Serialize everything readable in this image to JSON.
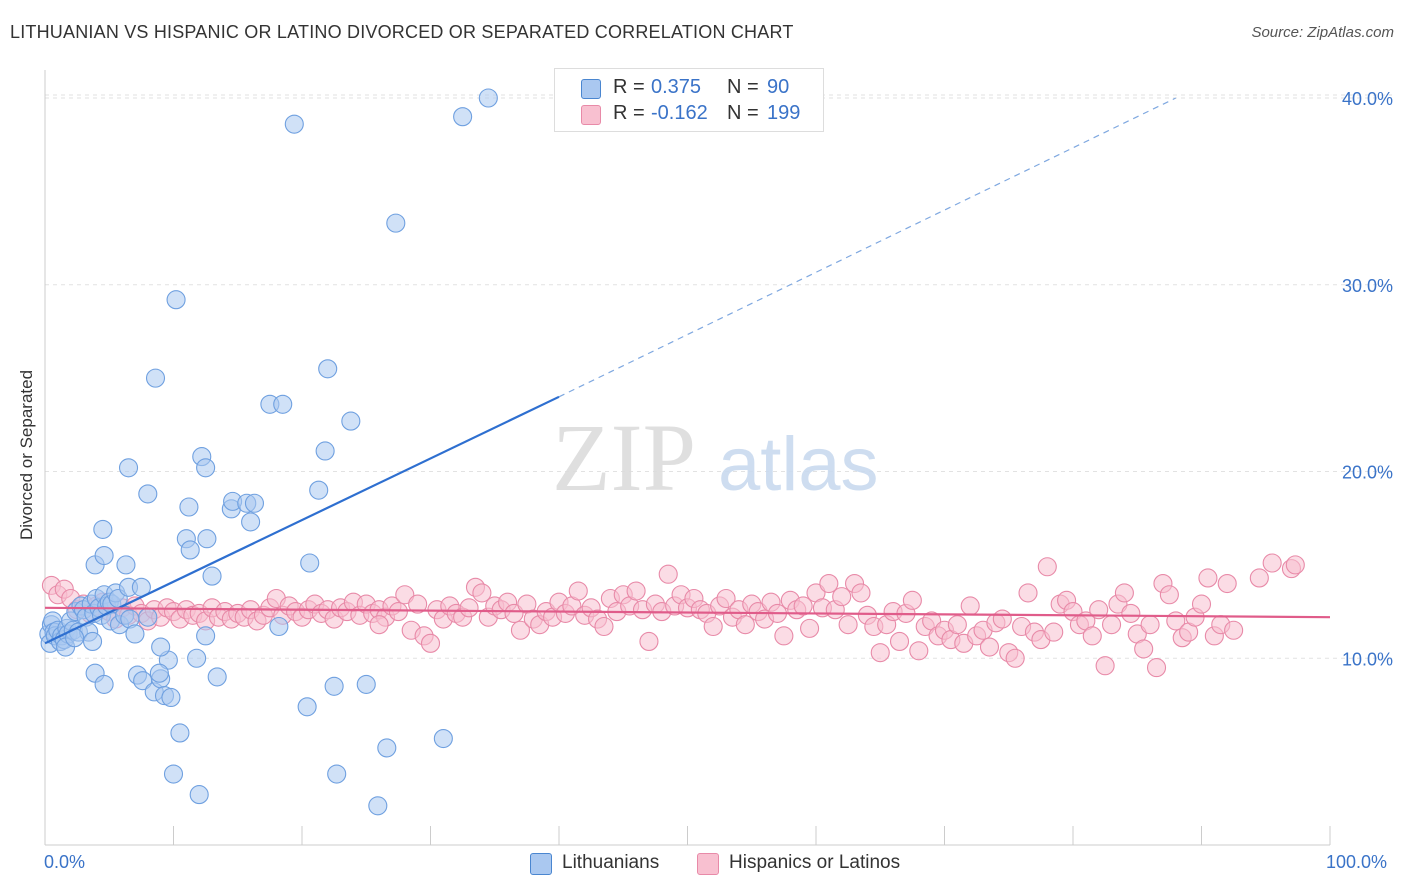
{
  "title": "LITHUANIAN VS HISPANIC OR LATINO DIVORCED OR SEPARATED CORRELATION CHART",
  "source": "Source: ZipAtlas.com",
  "watermark": {
    "zip": "ZIP",
    "atlas": "atlas"
  },
  "legend": {
    "r_label": "R =",
    "n_label": "N =",
    "rows": [
      {
        "r": "0.375",
        "n": "90",
        "color": "#aac8f0",
        "border": "#4a86d0"
      },
      {
        "r": "-0.162",
        "n": "199",
        "color": "#f8c0d0",
        "border": "#e88aa8"
      }
    ]
  },
  "bottom_legend": [
    {
      "label": "Lithuanians",
      "color": "#aac8f0",
      "border": "#4a86d0"
    },
    {
      "label": "Hispanics or Latinos",
      "color": "#f8c0d0",
      "border": "#e88aa8"
    }
  ],
  "x_tick_labels": {
    "left": "0.0%",
    "right": "100.0%"
  },
  "chart_data": {
    "type": "scatter",
    "xlabel": "",
    "ylabel": "Divorced or Separated",
    "xlim": [
      0,
      100
    ],
    "ylim": [
      0,
      41.5
    ],
    "y_ticks": [
      {
        "value": 10,
        "label": "10.0%"
      },
      {
        "value": 20,
        "label": "20.0%"
      },
      {
        "value": 30,
        "label": "30.0%"
      },
      {
        "value": 40,
        "label": "40.0%"
      }
    ],
    "grid": true,
    "legend_position": "top-center",
    "series": [
      {
        "name": "Lithuanians",
        "color": "#6fa0e0",
        "fill": "#aac8f0",
        "trend": {
          "x": [
            0,
            40
          ],
          "y": [
            10.8,
            24.0
          ],
          "extended_to": [
            88,
            40.0
          ],
          "line_color": "#2e6fd0"
        },
        "points": [
          [
            0.3,
            11.3
          ],
          [
            0.4,
            10.8
          ],
          [
            0.5,
            11.8
          ],
          [
            0.6,
            12.0
          ],
          [
            0.7,
            11.4
          ],
          [
            0.8,
            11.2
          ],
          [
            1.0,
            11.5
          ],
          [
            1.2,
            10.9
          ],
          [
            1.3,
            11.2
          ],
          [
            1.5,
            11.0
          ],
          [
            1.7,
            11.6
          ],
          [
            1.8,
            11.3
          ],
          [
            2.0,
            12.0
          ],
          [
            2.2,
            11.5
          ],
          [
            2.4,
            12.5
          ],
          [
            2.6,
            11.4
          ],
          [
            2.8,
            12.8
          ],
          [
            3.0,
            12.6
          ],
          [
            3.2,
            12.2
          ],
          [
            3.4,
            11.4
          ],
          [
            3.6,
            12.9
          ],
          [
            3.8,
            12.4
          ],
          [
            4.0,
            13.2
          ],
          [
            4.2,
            12.7
          ],
          [
            4.4,
            12.3
          ],
          [
            4.6,
            13.4
          ],
          [
            4.8,
            12.8
          ],
          [
            5.0,
            13.0
          ],
          [
            5.2,
            12.9
          ],
          [
            5.5,
            13.5
          ],
          [
            5.7,
            13.2
          ],
          [
            1.6,
            10.6
          ],
          [
            2.3,
            11.1
          ],
          [
            3.7,
            10.9
          ],
          [
            3.9,
            9.2
          ],
          [
            4.6,
            8.6
          ],
          [
            5.1,
            12.0
          ],
          [
            5.8,
            11.8
          ],
          [
            6.2,
            12.3
          ],
          [
            6.6,
            12.1
          ],
          [
            3.9,
            15.0
          ],
          [
            4.6,
            15.5
          ],
          [
            6.3,
            15.0
          ],
          [
            6.5,
            13.8
          ],
          [
            7.5,
            13.8
          ],
          [
            8.0,
            12.2
          ],
          [
            7.2,
            9.1
          ],
          [
            7.6,
            8.8
          ],
          [
            8.5,
            8.2
          ],
          [
            9.0,
            8.9
          ],
          [
            9.3,
            8.0
          ],
          [
            9.6,
            9.9
          ],
          [
            9.0,
            10.6
          ],
          [
            8.9,
            9.2
          ],
          [
            9.8,
            7.9
          ],
          [
            10.5,
            6.0
          ],
          [
            11.8,
            10.0
          ],
          [
            12.5,
            11.2
          ],
          [
            10.0,
            3.8
          ],
          [
            12.0,
            2.7
          ],
          [
            4.5,
            16.9
          ],
          [
            6.5,
            20.2
          ],
          [
            8.0,
            18.8
          ],
          [
            8.6,
            25.0
          ],
          [
            10.2,
            29.2
          ],
          [
            11.2,
            18.1
          ],
          [
            11.0,
            16.4
          ],
          [
            11.3,
            15.8
          ],
          [
            12.6,
            16.4
          ],
          [
            12.2,
            20.8
          ],
          [
            12.5,
            20.2
          ],
          [
            13.0,
            14.4
          ],
          [
            14.5,
            18.0
          ],
          [
            14.6,
            18.4
          ],
          [
            15.7,
            18.3
          ],
          [
            16.0,
            17.3
          ],
          [
            16.3,
            18.3
          ],
          [
            17.5,
            23.6
          ],
          [
            18.2,
            11.7
          ],
          [
            18.5,
            23.6
          ],
          [
            19.4,
            38.6
          ],
          [
            20.4,
            7.4
          ],
          [
            20.6,
            15.1
          ],
          [
            21.3,
            19.0
          ],
          [
            21.8,
            21.1
          ],
          [
            22.0,
            25.5
          ],
          [
            22.5,
            8.5
          ],
          [
            22.7,
            3.8
          ],
          [
            23.8,
            22.7
          ],
          [
            25.0,
            8.6
          ],
          [
            25.9,
            2.1
          ],
          [
            26.6,
            5.2
          ],
          [
            27.3,
            33.3
          ],
          [
            31.0,
            5.7
          ],
          [
            32.5,
            39.0
          ],
          [
            34.5,
            40.0
          ],
          [
            7.0,
            11.3
          ],
          [
            13.4,
            9.0
          ]
        ]
      },
      {
        "name": "Hispanics or Latinos",
        "color": "#e88aa8",
        "fill": "#f8c0d0",
        "trend": {
          "x": [
            0,
            100
          ],
          "y": [
            12.7,
            12.2
          ],
          "line_color": "#e05c8a"
        },
        "points": [
          [
            0.5,
            13.9
          ],
          [
            1.0,
            13.4
          ],
          [
            1.5,
            13.7
          ],
          [
            2.0,
            13.2
          ],
          [
            2.5,
            12.6
          ],
          [
            3.0,
            12.9
          ],
          [
            3.5,
            12.4
          ],
          [
            4.0,
            12.8
          ],
          [
            4.5,
            13.0
          ],
          [
            5.0,
            12.5
          ],
          [
            5.5,
            12.1
          ],
          [
            6.0,
            12.7
          ],
          [
            6.5,
            12.3
          ],
          [
            7.0,
            12.8
          ],
          [
            7.5,
            12.4
          ],
          [
            8.0,
            12.0
          ],
          [
            8.5,
            12.6
          ],
          [
            9.0,
            12.2
          ],
          [
            9.5,
            12.7
          ],
          [
            10.0,
            12.5
          ],
          [
            10.5,
            12.1
          ],
          [
            11.0,
            12.6
          ],
          [
            11.5,
            12.3
          ],
          [
            12.0,
            12.4
          ],
          [
            12.5,
            12.0
          ],
          [
            13.0,
            12.7
          ],
          [
            13.5,
            12.2
          ],
          [
            14.0,
            12.5
          ],
          [
            14.5,
            12.1
          ],
          [
            15.0,
            12.4
          ],
          [
            15.5,
            12.2
          ],
          [
            16.0,
            12.6
          ],
          [
            16.5,
            12.0
          ],
          [
            17.0,
            12.3
          ],
          [
            17.5,
            12.7
          ],
          [
            18.0,
            13.2
          ],
          [
            18.5,
            12.3
          ],
          [
            19.0,
            12.8
          ],
          [
            19.5,
            12.5
          ],
          [
            20.0,
            12.2
          ],
          [
            20.5,
            12.6
          ],
          [
            21.0,
            12.9
          ],
          [
            21.5,
            12.4
          ],
          [
            22.0,
            12.6
          ],
          [
            22.5,
            12.1
          ],
          [
            23.0,
            12.7
          ],
          [
            23.5,
            12.5
          ],
          [
            24.0,
            13.0
          ],
          [
            24.5,
            12.3
          ],
          [
            25.0,
            12.9
          ],
          [
            25.5,
            12.4
          ],
          [
            26.0,
            12.6
          ],
          [
            26.5,
            12.2
          ],
          [
            27.0,
            12.8
          ],
          [
            27.5,
            12.5
          ],
          [
            28.0,
            13.4
          ],
          [
            28.5,
            11.5
          ],
          [
            29.0,
            12.9
          ],
          [
            29.5,
            11.2
          ],
          [
            30.0,
            10.8
          ],
          [
            30.5,
            12.6
          ],
          [
            31.0,
            12.1
          ],
          [
            31.5,
            12.8
          ],
          [
            32.0,
            12.4
          ],
          [
            32.5,
            12.2
          ],
          [
            33.0,
            12.7
          ],
          [
            33.5,
            13.8
          ],
          [
            34.0,
            13.5
          ],
          [
            34.5,
            12.2
          ],
          [
            35.0,
            12.8
          ],
          [
            35.5,
            12.6
          ],
          [
            36.0,
            13.0
          ],
          [
            36.5,
            12.4
          ],
          [
            37.0,
            11.5
          ],
          [
            37.5,
            12.9
          ],
          [
            38.0,
            12.1
          ],
          [
            38.5,
            11.8
          ],
          [
            39.0,
            12.5
          ],
          [
            39.5,
            12.2
          ],
          [
            40.0,
            13.0
          ],
          [
            40.5,
            12.4
          ],
          [
            41.0,
            12.8
          ],
          [
            41.5,
            13.6
          ],
          [
            42.0,
            12.3
          ],
          [
            42.5,
            12.7
          ],
          [
            43.0,
            12.1
          ],
          [
            43.5,
            11.7
          ],
          [
            44.0,
            13.2
          ],
          [
            44.5,
            12.5
          ],
          [
            45.0,
            13.4
          ],
          [
            45.5,
            12.8
          ],
          [
            46.0,
            13.6
          ],
          [
            46.5,
            12.6
          ],
          [
            47.0,
            10.9
          ],
          [
            47.5,
            12.9
          ],
          [
            48.0,
            12.5
          ],
          [
            48.5,
            14.5
          ],
          [
            49.0,
            12.8
          ],
          [
            49.5,
            13.4
          ],
          [
            50.0,
            12.7
          ],
          [
            50.5,
            13.2
          ],
          [
            51.0,
            12.6
          ],
          [
            51.5,
            12.4
          ],
          [
            52.0,
            11.7
          ],
          [
            52.5,
            12.8
          ],
          [
            53.0,
            13.2
          ],
          [
            53.5,
            12.2
          ],
          [
            54.0,
            12.6
          ],
          [
            54.5,
            11.8
          ],
          [
            55.0,
            12.9
          ],
          [
            55.5,
            12.5
          ],
          [
            56.0,
            12.1
          ],
          [
            56.5,
            13.0
          ],
          [
            57.0,
            12.4
          ],
          [
            57.5,
            11.2
          ],
          [
            58.0,
            13.1
          ],
          [
            58.5,
            12.6
          ],
          [
            59.0,
            12.8
          ],
          [
            59.5,
            11.6
          ],
          [
            60.0,
            13.5
          ],
          [
            60.5,
            12.7
          ],
          [
            61.0,
            14.0
          ],
          [
            61.5,
            12.6
          ],
          [
            62.0,
            13.3
          ],
          [
            62.5,
            11.8
          ],
          [
            63.0,
            14.0
          ],
          [
            63.5,
            13.5
          ],
          [
            64.0,
            12.3
          ],
          [
            64.5,
            11.7
          ],
          [
            65.0,
            10.3
          ],
          [
            65.5,
            11.8
          ],
          [
            66.0,
            12.5
          ],
          [
            66.5,
            10.9
          ],
          [
            67.0,
            12.4
          ],
          [
            67.5,
            13.1
          ],
          [
            68.0,
            10.4
          ],
          [
            68.5,
            11.7
          ],
          [
            69.0,
            12.0
          ],
          [
            69.5,
            11.2
          ],
          [
            70.0,
            11.5
          ],
          [
            70.5,
            11.0
          ],
          [
            71.0,
            11.8
          ],
          [
            71.5,
            10.8
          ],
          [
            72.0,
            12.8
          ],
          [
            72.5,
            11.2
          ],
          [
            73.0,
            11.5
          ],
          [
            73.5,
            10.6
          ],
          [
            74.0,
            11.9
          ],
          [
            74.5,
            12.1
          ],
          [
            75.0,
            10.3
          ],
          [
            75.5,
            10.0
          ],
          [
            76.0,
            11.7
          ],
          [
            76.5,
            13.5
          ],
          [
            77.0,
            11.4
          ],
          [
            77.5,
            11.0
          ],
          [
            78.0,
            14.9
          ],
          [
            78.5,
            11.4
          ],
          [
            79.0,
            12.9
          ],
          [
            79.5,
            13.1
          ],
          [
            80.0,
            12.5
          ],
          [
            80.5,
            11.8
          ],
          [
            81.0,
            12.0
          ],
          [
            81.5,
            11.2
          ],
          [
            82.0,
            12.6
          ],
          [
            82.5,
            9.6
          ],
          [
            83.0,
            11.8
          ],
          [
            83.5,
            12.9
          ],
          [
            84.0,
            13.5
          ],
          [
            84.5,
            12.4
          ],
          [
            85.0,
            11.3
          ],
          [
            85.5,
            10.5
          ],
          [
            86.0,
            11.8
          ],
          [
            86.5,
            9.5
          ],
          [
            87.0,
            14.0
          ],
          [
            87.5,
            13.4
          ],
          [
            88.0,
            12.0
          ],
          [
            88.5,
            11.1
          ],
          [
            89.0,
            11.4
          ],
          [
            89.5,
            12.2
          ],
          [
            90.0,
            12.9
          ],
          [
            90.5,
            14.3
          ],
          [
            91.0,
            11.2
          ],
          [
            91.5,
            11.8
          ],
          [
            92.0,
            14.0
          ],
          [
            92.5,
            11.5
          ],
          [
            94.5,
            14.3
          ],
          [
            95.5,
            15.1
          ],
          [
            97.0,
            14.8
          ],
          [
            97.3,
            15.0
          ],
          [
            26.0,
            11.8
          ]
        ]
      }
    ]
  }
}
